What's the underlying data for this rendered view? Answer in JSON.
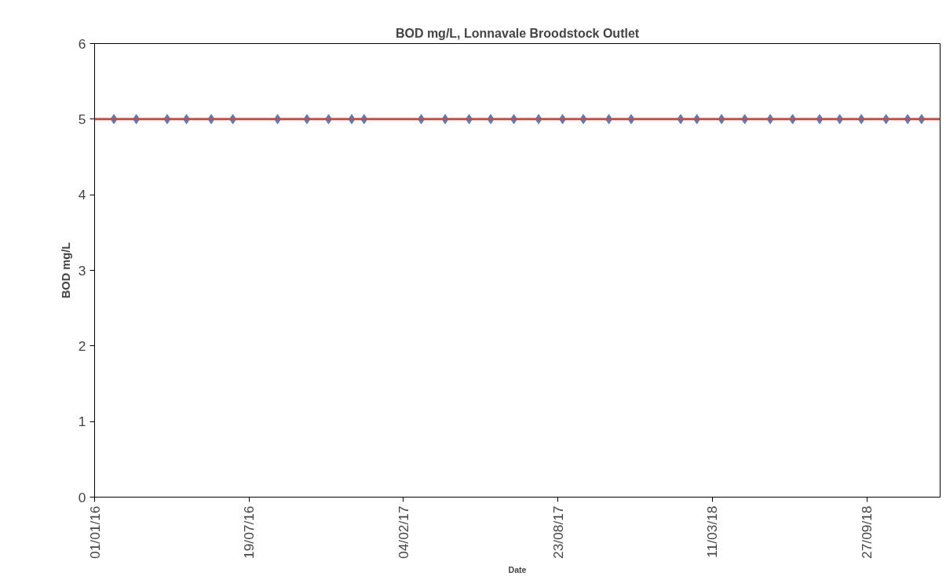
{
  "chart_data": {
    "type": "scatter",
    "title": "BOD mg/L, Lonnavale Broodstock Outlet",
    "xlabel": "Date",
    "ylabel": "BOD mg/L",
    "x": [
      "2016-01-26",
      "2016-02-24",
      "2016-04-04",
      "2016-04-29",
      "2016-05-31",
      "2016-06-28",
      "2016-08-25",
      "2016-10-02",
      "2016-10-30",
      "2016-11-29",
      "2016-12-15",
      "2017-02-27",
      "2017-03-30",
      "2017-04-30",
      "2017-05-28",
      "2017-06-27",
      "2017-07-29",
      "2017-08-29",
      "2017-09-25",
      "2017-10-28",
      "2017-11-26",
      "2018-01-29",
      "2018-02-19",
      "2018-03-23",
      "2018-04-22",
      "2018-05-25",
      "2018-06-23",
      "2018-07-28",
      "2018-08-23",
      "2018-09-20",
      "2018-10-22",
      "2018-11-19",
      "2018-12-07"
    ],
    "series": [
      {
        "color": "#4f81bd",
        "values": [
          5,
          5,
          5,
          5,
          5,
          5,
          5,
          5,
          5,
          5,
          5,
          5,
          5,
          5,
          5,
          5,
          5,
          5,
          5,
          5,
          5,
          5,
          5,
          5,
          5,
          5,
          5,
          5,
          5,
          5,
          5,
          5,
          5
        ]
      }
    ],
    "marker": "diamond",
    "xlim": [
      "2016-01-01",
      "2018-12-31"
    ],
    "xticks": [
      {
        "value": "2016-01-01",
        "label": "01/01/16"
      },
      {
        "value": "2016-07-19",
        "label": "19/07/16"
      },
      {
        "value": "2017-02-04",
        "label": "04/02/17"
      },
      {
        "value": "2017-08-23",
        "label": "23/08/17"
      },
      {
        "value": "2018-03-11",
        "label": "11/03/18"
      },
      {
        "value": "2018-09-27",
        "label": "27/09/18"
      }
    ],
    "ylim": [
      0,
      6
    ],
    "yticks": [
      0,
      1,
      2,
      3,
      4,
      5,
      6
    ],
    "ref_lines": [
      {
        "axis": "y",
        "value": 5,
        "color": "#c0504d"
      }
    ],
    "grid": false
  }
}
